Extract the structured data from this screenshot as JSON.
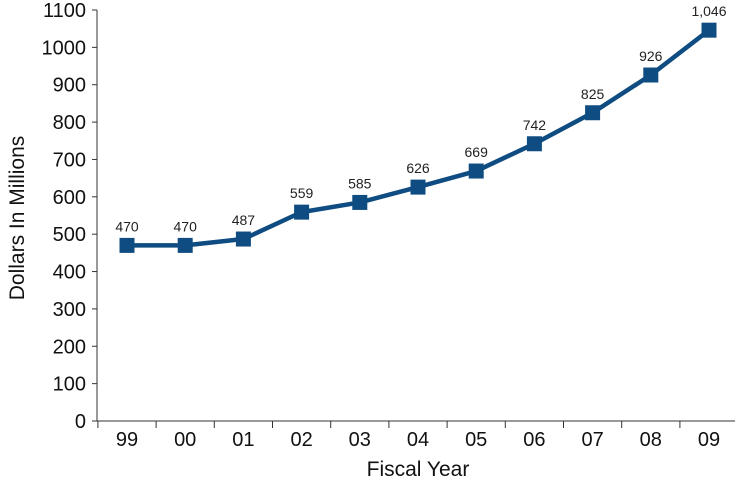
{
  "chart_data": {
    "type": "line",
    "title": "",
    "xlabel": "Fiscal Year",
    "ylabel": "Dollars In Millions",
    "categories": [
      "99",
      "00",
      "01",
      "02",
      "03",
      "04",
      "05",
      "06",
      "07",
      "08",
      "09"
    ],
    "series": [
      {
        "values": [
          470,
          470,
          487,
          559,
          585,
          626,
          669,
          742,
          825,
          926,
          1046
        ],
        "labels": [
          "470",
          "470",
          "487",
          "559",
          "585",
          "626",
          "669",
          "742",
          "825",
          "926",
          "1,046"
        ]
      }
    ],
    "ylim": [
      0,
      1100
    ],
    "yticks": [
      0,
      100,
      200,
      300,
      400,
      500,
      600,
      700,
      800,
      900,
      1000,
      1100
    ],
    "grid": false,
    "legend": "none",
    "series_color": "#0f4c81",
    "marker": "square"
  }
}
